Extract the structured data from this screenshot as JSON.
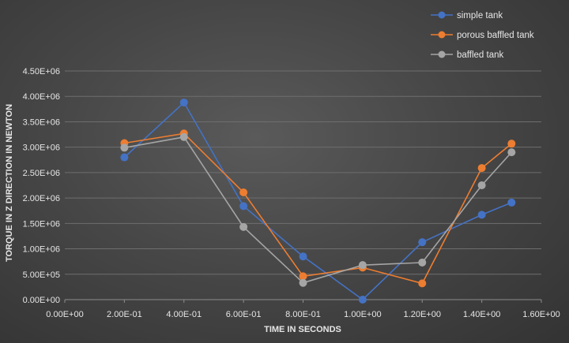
{
  "chart_data": {
    "type": "line",
    "title": "",
    "xlabel": "TIME IN SECONDS",
    "ylabel": "TORQUE IN Z DIRECTION IN NEWTON",
    "xlim": [
      0,
      1.6
    ],
    "ylim": [
      0,
      4500000
    ],
    "xticks": [
      0,
      0.2,
      0.4,
      0.6,
      0.8,
      1.0,
      1.2,
      1.4,
      1.6
    ],
    "xtick_labels": [
      "0.00E+00",
      "2.00E-01",
      "4.00E-01",
      "6.00E-01",
      "8.00E-01",
      "1.00E+00",
      "1.20E+00",
      "1.40E+00",
      "1.60E+00"
    ],
    "yticks": [
      0,
      500000,
      1000000,
      1500000,
      2000000,
      2500000,
      3000000,
      3500000,
      4000000,
      4500000
    ],
    "ytick_labels": [
      "0.00E+00",
      "5.00E+05",
      "1.00E+06",
      "1.50E+06",
      "2.00E+06",
      "2.50E+06",
      "3.00E+06",
      "3.50E+06",
      "4.00E+06",
      "4.50E+06"
    ],
    "grid": true,
    "legend_position": "top-right",
    "x": [
      0.2,
      0.4,
      0.6,
      0.8,
      1.0,
      1.2,
      1.4,
      1.5
    ],
    "series": [
      {
        "name": "simple tank",
        "color": "#4472c4",
        "values": [
          2800000,
          3880000,
          1840000,
          850000,
          0,
          1130000,
          1670000,
          1910000
        ]
      },
      {
        "name": "porous baffled tank",
        "color": "#ed7d31",
        "values": [
          3080000,
          3270000,
          2110000,
          460000,
          630000,
          320000,
          2590000,
          3070000
        ]
      },
      {
        "name": "baffled tank",
        "color": "#a5a5a5",
        "values": [
          2990000,
          3200000,
          1430000,
          330000,
          680000,
          730000,
          2250000,
          2900000
        ]
      }
    ]
  }
}
